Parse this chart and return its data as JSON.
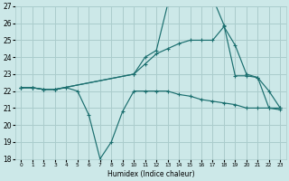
{
  "xlabel": "Humidex (Indice chaleur)",
  "bg_color": "#cce8e8",
  "grid_color": "#aacccc",
  "line_color": "#1a6e6e",
  "xlim": [
    -0.5,
    23.5
  ],
  "ylim": [
    18,
    27
  ],
  "xticks": [
    0,
    1,
    2,
    3,
    4,
    5,
    6,
    7,
    8,
    9,
    10,
    11,
    12,
    13,
    14,
    15,
    16,
    17,
    18,
    19,
    20,
    21,
    22,
    23
  ],
  "yticks": [
    18,
    19,
    20,
    21,
    22,
    23,
    24,
    25,
    26,
    27
  ],
  "line1_x": [
    0,
    1,
    2,
    3,
    4,
    5,
    6,
    7,
    8,
    9,
    10,
    11,
    12,
    13,
    14,
    15,
    16,
    17,
    18,
    19,
    20,
    21,
    22,
    23
  ],
  "line1_y": [
    22.2,
    22.2,
    22.1,
    22.1,
    22.2,
    22.0,
    20.6,
    18.0,
    19.0,
    20.8,
    22.0,
    22.0,
    22.0,
    22.0,
    21.8,
    21.7,
    21.5,
    21.4,
    21.3,
    21.2,
    21.0,
    21.0,
    21.0,
    20.9
  ],
  "line2_x": [
    0,
    1,
    2,
    3,
    10,
    11,
    12,
    13,
    14,
    15,
    16,
    17,
    18,
    19,
    20,
    21,
    22,
    23
  ],
  "line2_y": [
    22.2,
    22.2,
    22.1,
    22.1,
    23.0,
    24.0,
    24.4,
    27.1,
    27.2,
    27.2,
    27.3,
    27.5,
    25.9,
    22.9,
    22.9,
    22.8,
    21.0,
    21.0
  ],
  "line3_x": [
    0,
    1,
    2,
    3,
    10,
    11,
    12,
    13,
    14,
    15,
    16,
    17,
    18,
    19,
    20,
    21,
    22,
    23
  ],
  "line3_y": [
    22.2,
    22.2,
    22.1,
    22.1,
    23.0,
    23.6,
    24.2,
    24.5,
    24.8,
    25.0,
    25.0,
    25.0,
    25.8,
    24.7,
    23.0,
    22.8,
    22.0,
    21.0
  ]
}
